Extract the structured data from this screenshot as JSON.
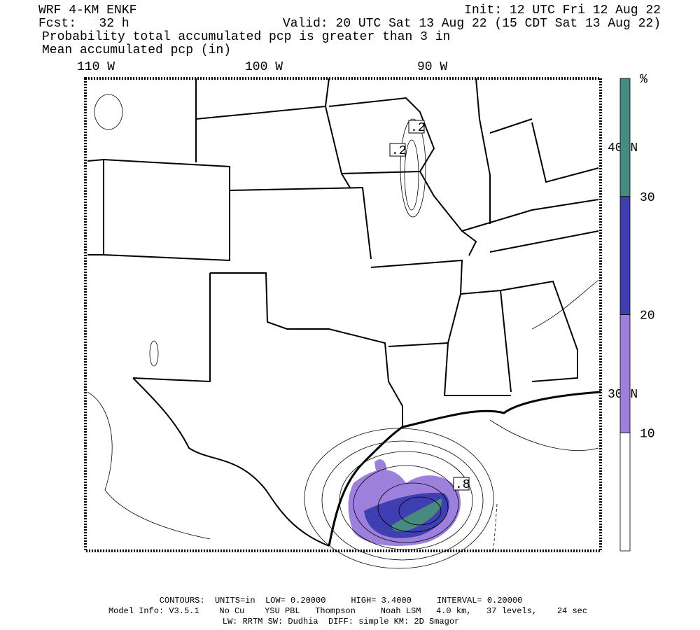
{
  "header": {
    "model": "WRF 4-KM ENKF",
    "forecast": "Fcst:   32 h",
    "init": "Init: 12 UTC Fri 12 Aug 22",
    "valid": "Valid: 20 UTC Sat 13 Aug 22 (15 CDT Sat 13 Aug 22)",
    "field1": "Probability total accumulated pcp is greater than 3 in",
    "field2": "Mean accumulated pcp (in)"
  },
  "map": {
    "longitudes": [
      "110 W",
      "100 W",
      "90 W"
    ],
    "latitudes": [
      "40 N",
      "30 N"
    ],
    "contour_labels": [
      ".2",
      ".2",
      ".8"
    ]
  },
  "colorbar": {
    "unit": "%",
    "ticks": [
      10,
      20,
      30
    ],
    "colors": [
      "#ffffff",
      "#9d80dc",
      "#3f3fb2",
      "#478a80"
    ]
  },
  "footer": {
    "contours": "CONTOURS:  UNITS=in  LOW= 0.20000     HIGH= 3.4000     INTERVAL= 0.20000",
    "model_info": "Model Info: V3.5.1    No Cu    YSU PBL   Thompson     Noah LSM   4.0 km,   37 levels,    24 sec",
    "physics": "LW: RRTM SW: Dudhia  DIFF: simple KM: 2D Smagor"
  }
}
